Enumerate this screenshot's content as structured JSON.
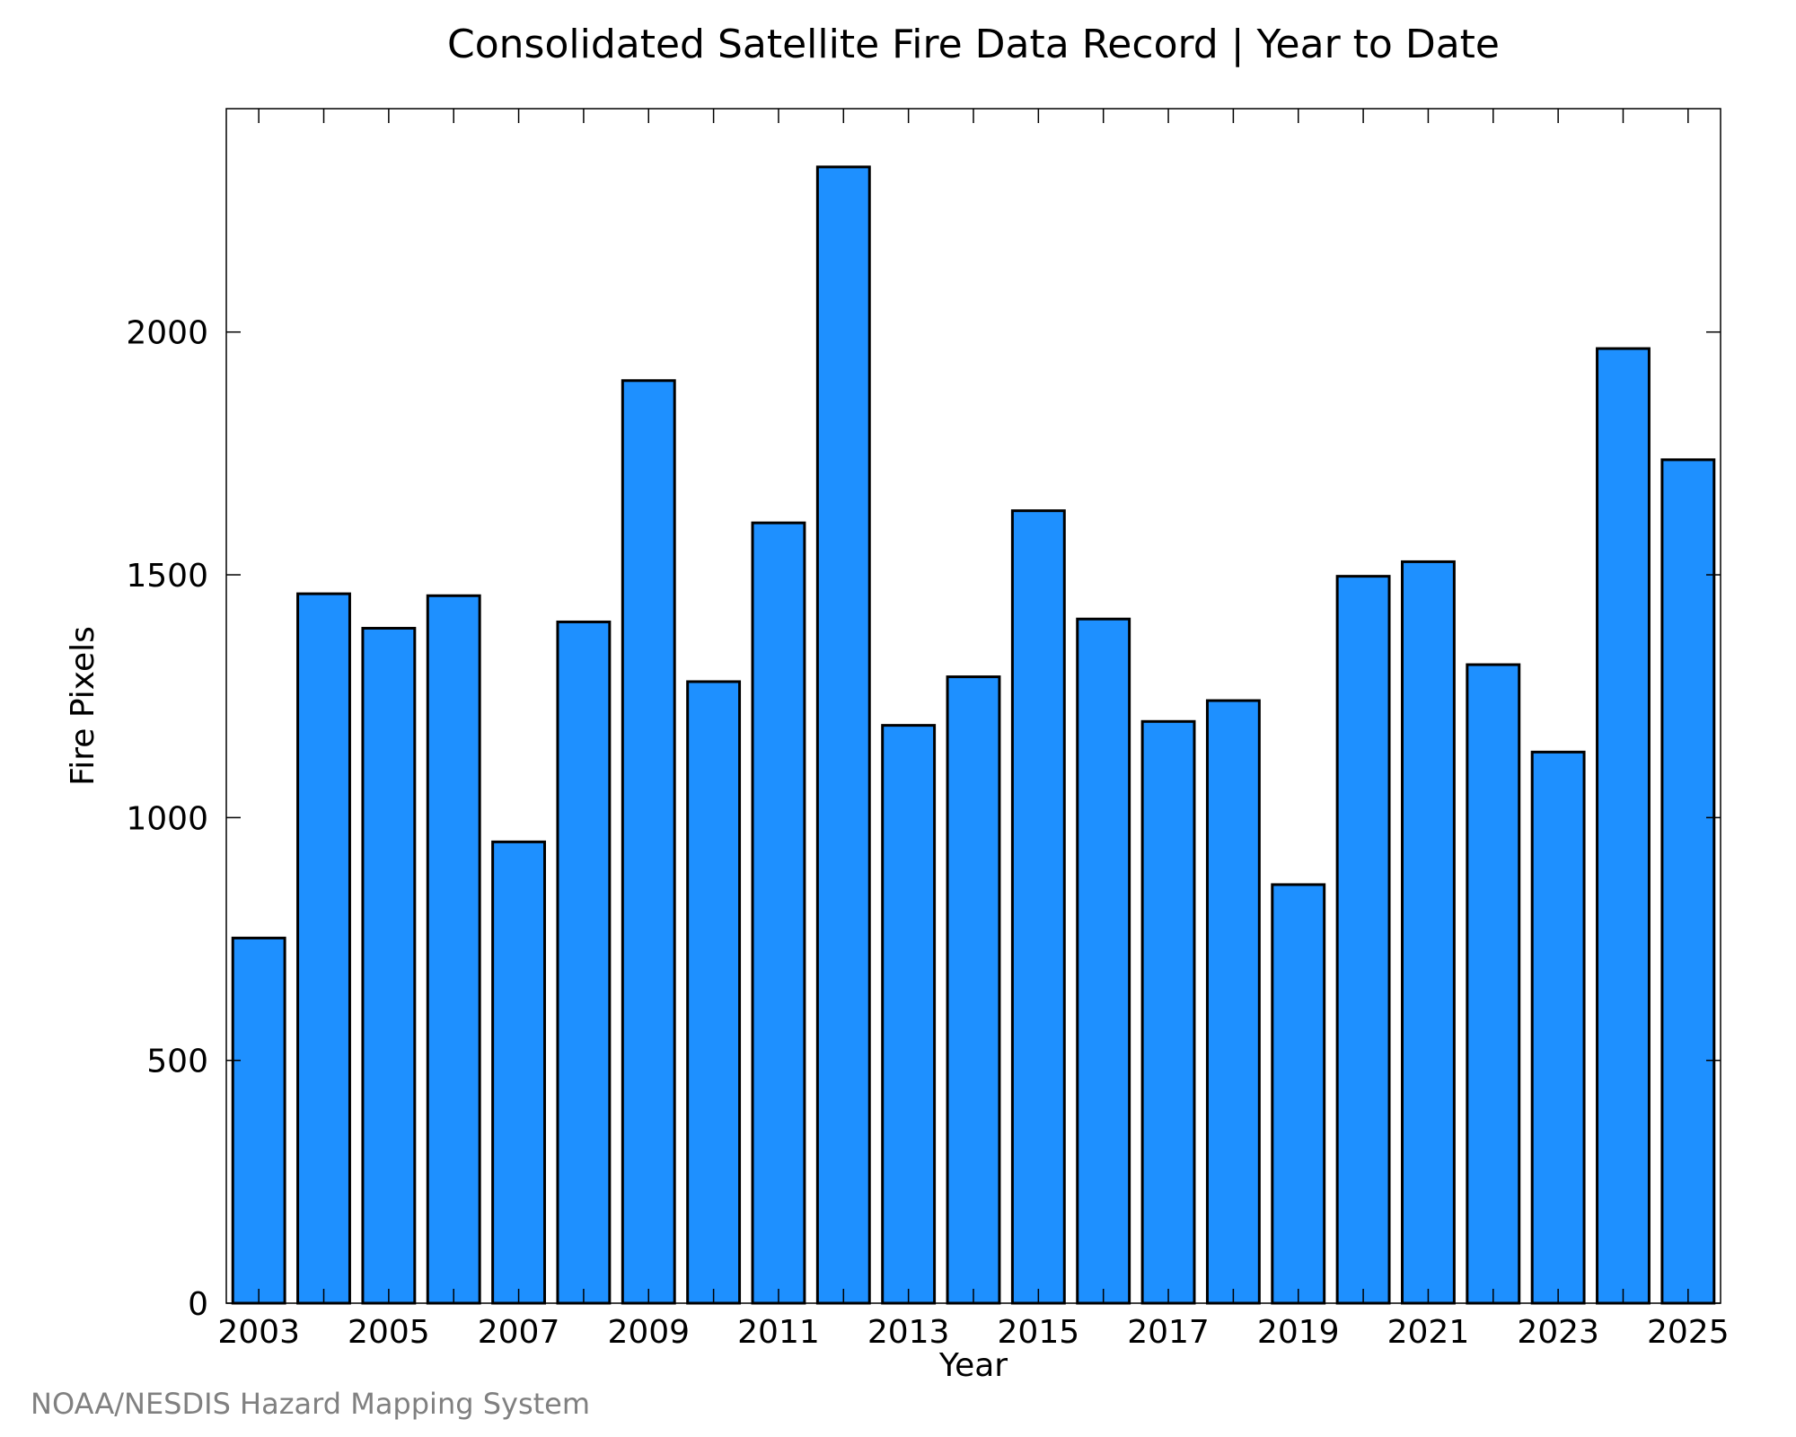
{
  "chart_data": {
    "type": "bar",
    "title": "Consolidated Satellite Fire Data Record | Year to Date",
    "xlabel": "Year",
    "ylabel": "Fire Pixels",
    "categories": [
      2003,
      2004,
      2005,
      2006,
      2007,
      2008,
      2009,
      2010,
      2011,
      2012,
      2013,
      2014,
      2015,
      2016,
      2017,
      2018,
      2019,
      2020,
      2021,
      2022,
      2023,
      2024,
      2025
    ],
    "values": [
      752,
      1461,
      1390,
      1457,
      950,
      1403,
      1900,
      1280,
      1607,
      2340,
      1190,
      1290,
      1632,
      1409,
      1198,
      1241,
      862,
      1497,
      1527,
      1315,
      1135,
      1966,
      1737
    ],
    "x_tick_labels": [
      "2003",
      "2005",
      "2007",
      "2009",
      "2011",
      "2013",
      "2015",
      "2017",
      "2019",
      "2021",
      "2023",
      "2025"
    ],
    "y_tick_labels": [
      "0",
      "500",
      "1000",
      "1500",
      "2000"
    ],
    "y_ticks": [
      0,
      500,
      1000,
      1500,
      2000
    ],
    "ylim": [
      0,
      2460
    ],
    "xlim": [
      2002.5,
      2025.5
    ],
    "grid": false,
    "colors": {
      "bar": "#1e90ff",
      "edge": "#000000"
    }
  },
  "footer": {
    "credit": "NOAA/NESDIS Hazard Mapping System"
  }
}
